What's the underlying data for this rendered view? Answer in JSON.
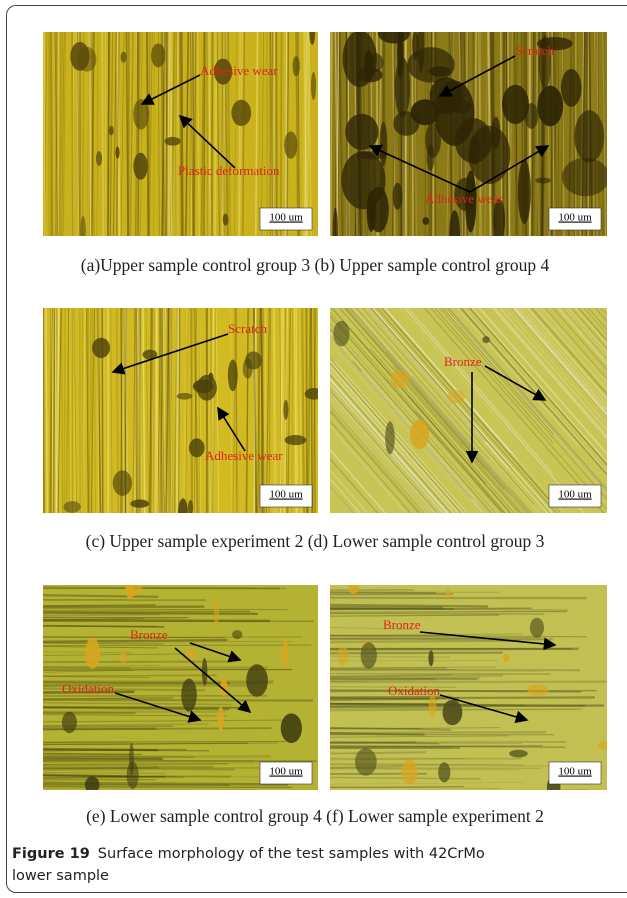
{
  "panels": [
    {
      "caption": "(a)Upper sample control group 3",
      "scale_bar": "100 um",
      "annotations": [
        "Adhesive wear",
        "Plastic deformation"
      ]
    },
    {
      "caption": "(b) Upper sample control group 4",
      "scale_bar": "100 um",
      "annotations": [
        "Scratch",
        "Adhesive wear"
      ]
    },
    {
      "caption": "(c) Upper sample experiment 2",
      "scale_bar": "100 um",
      "annotations": [
        "Scratch",
        "Adhesive wear"
      ]
    },
    {
      "caption": "(d) Lower sample control group 3",
      "scale_bar": "100 um",
      "annotations": [
        "Bronze"
      ]
    },
    {
      "caption": "(e) Lower sample control group 4",
      "scale_bar": "100 um",
      "annotations": [
        "Bronze",
        "Oxidation"
      ]
    },
    {
      "caption": "(f) Lower sample experiment 2",
      "scale_bar": "100 um",
      "annotations": [
        "Bronze",
        "Oxidation"
      ]
    }
  ],
  "figure": {
    "label": "Figure 19",
    "caption": "Surface morphology of the test samples with 42CrMo lower sample"
  }
}
